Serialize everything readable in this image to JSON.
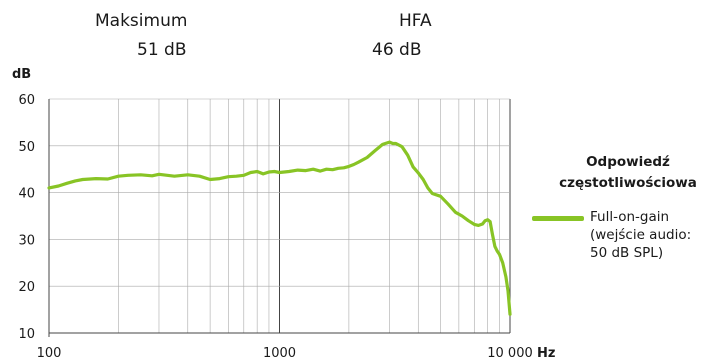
{
  "stats": [
    {
      "label": "Maksimum",
      "value": "51 dB"
    },
    {
      "label": "HFA",
      "value": "46 dB"
    }
  ],
  "chart_data": {
    "type": "line",
    "ylabel": "dB",
    "xlabel": "Hz",
    "xscale": "log",
    "xlim": [
      100,
      10000
    ],
    "ylim": [
      10,
      60
    ],
    "xticks": [
      "100",
      "1000",
      "10 000"
    ],
    "yticks": [
      "60",
      "50",
      "40",
      "30",
      "20",
      "10"
    ],
    "grid": true,
    "legend_title": "Odpowiedź częstotliwościowa",
    "colors": {
      "series": "#88c425",
      "grid": "#aaaaaa",
      "axis": "#444444"
    },
    "series": [
      {
        "name": "Full-on-gain (wejście audio: 50 dB SPL)",
        "legend_lines": [
          "Full-on-gain",
          "(wejście audio:",
          "50 dB SPL)"
        ],
        "x": [
          100,
          110,
          120,
          130,
          140,
          160,
          180,
          200,
          220,
          250,
          280,
          300,
          350,
          400,
          450,
          500,
          550,
          600,
          650,
          700,
          750,
          800,
          850,
          900,
          950,
          1000,
          1100,
          1200,
          1300,
          1400,
          1500,
          1600,
          1700,
          1800,
          1900,
          2000,
          2100,
          2200,
          2400,
          2600,
          2800,
          3000,
          3100,
          3200,
          3400,
          3600,
          3800,
          4000,
          4200,
          4400,
          4600,
          5000,
          5400,
          5800,
          6200,
          6600,
          7000,
          7300,
          7600,
          7800,
          8000,
          8200,
          8400,
          8600,
          8800,
          9000,
          9300,
          9600,
          9800,
          10000
        ],
        "y": [
          41,
          41.4,
          42,
          42.5,
          42.8,
          43,
          42.9,
          43.5,
          43.7,
          43.8,
          43.6,
          43.9,
          43.5,
          43.8,
          43.5,
          42.8,
          43,
          43.4,
          43.5,
          43.7,
          44.3,
          44.5,
          44,
          44.4,
          44.5,
          44.3,
          44.5,
          44.8,
          44.7,
          45,
          44.6,
          45,
          44.9,
          45.2,
          45.3,
          45.6,
          46,
          46.5,
          47.5,
          49,
          50.3,
          50.8,
          50.5,
          50.5,
          49.8,
          48,
          45.5,
          44.2,
          42.8,
          41,
          39.8,
          39.2,
          37.5,
          35.8,
          35,
          34,
          33.2,
          33,
          33.3,
          34,
          34.2,
          33.8,
          31,
          28.5,
          27.5,
          26.8,
          25,
          22,
          19,
          14
        ]
      }
    ]
  }
}
